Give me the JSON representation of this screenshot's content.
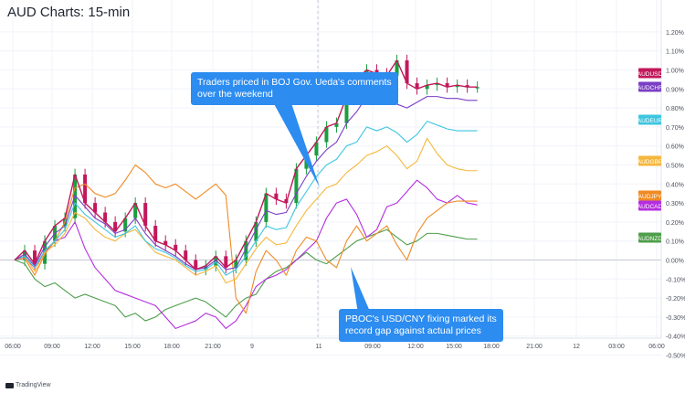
{
  "title": "AUD Charts: 15-min",
  "watermark": "TradingView",
  "annotations": [
    "Traders priced in BOJ Gov. Ueda's comments\nover the weekend",
    "PBOC's USD/CNY fixing marked its\nrecord gap against actual prices"
  ],
  "colors": {
    "background": "#ffffff",
    "grid": "#f0f3fa",
    "zero_line": "#b8bcc8",
    "up_candle": "#1b9e3e",
    "down_candle": "#c2185b",
    "callout": "#2c8cf0",
    "axis_text": "#4a4f5c"
  },
  "chart_data": {
    "type": "line",
    "title": "AUD Charts: 15-min",
    "x_ticks": [
      "06:00",
      "09:00",
      "12:00",
      "15:00",
      "18:00",
      "21:00",
      "9",
      "11",
      "09:00",
      "12:00",
      "15:00",
      "18:00",
      "21:00",
      "12",
      "03:00",
      "06:00"
    ],
    "y_ticks": [
      "1.20%",
      "1.10%",
      "1.00%",
      "0.90%",
      "0.80%",
      "0.70%",
      "0.60%",
      "0.50%",
      "0.40%",
      "0.30%",
      "0.20%",
      "0.10%",
      "0.00%",
      "-0.10%",
      "-0.20%",
      "-0.30%",
      "-0.40%",
      "-0.50%"
    ],
    "ylim": [
      -0.5,
      1.25
    ],
    "grid": true,
    "x_index": [
      0,
      3,
      6,
      9,
      12,
      15,
      18,
      21,
      24,
      27,
      30,
      33,
      36,
      39,
      42,
      45,
      48,
      51,
      54,
      57,
      60,
      63,
      66,
      69,
      72,
      75,
      78,
      81,
      84,
      87,
      90,
      93,
      96,
      99,
      102,
      105,
      108,
      111,
      114,
      117,
      120,
      123,
      126,
      129,
      132,
      135,
      138
    ],
    "series": [
      {
        "name": "AUDUSD",
        "color": "#c2185b",
        "last_label": true,
        "values": [
          0.0,
          0.05,
          -0.02,
          0.1,
          0.18,
          0.22,
          0.45,
          0.3,
          0.25,
          0.2,
          0.15,
          0.22,
          0.3,
          0.18,
          0.1,
          0.08,
          0.05,
          0.0,
          -0.05,
          -0.03,
          0.02,
          -0.04,
          0.0,
          0.1,
          0.2,
          0.35,
          0.32,
          0.3,
          0.48,
          0.55,
          0.62,
          0.7,
          0.72,
          0.86,
          0.95,
          1.0,
          0.98,
          0.97,
          1.05,
          0.93,
          0.9,
          0.92,
          0.93,
          0.91,
          0.92,
          0.91,
          0.91
        ]
      },
      {
        "name": "AUDCHF",
        "color": "#7b3fc4",
        "last_label": true,
        "values": [
          0.0,
          0.03,
          -0.03,
          0.07,
          0.14,
          0.18,
          0.34,
          0.28,
          0.22,
          0.19,
          0.14,
          0.16,
          0.22,
          0.14,
          0.08,
          0.05,
          0.02,
          -0.02,
          -0.05,
          -0.04,
          0.0,
          -0.05,
          -0.04,
          0.06,
          0.16,
          0.26,
          0.24,
          0.25,
          0.35,
          0.44,
          0.52,
          0.58,
          0.62,
          0.72,
          0.78,
          0.86,
          0.84,
          0.85,
          0.82,
          0.8,
          0.83,
          0.86,
          0.86,
          0.85,
          0.85,
          0.84,
          0.84
        ]
      },
      {
        "name": "AUDEUR",
        "color": "#3ec6e0",
        "last_label": true,
        "values": [
          0.0,
          0.02,
          -0.04,
          0.05,
          0.1,
          0.16,
          0.3,
          0.24,
          0.2,
          0.16,
          0.12,
          0.14,
          0.18,
          0.1,
          0.06,
          0.04,
          0.01,
          -0.03,
          -0.06,
          -0.05,
          -0.01,
          -0.08,
          -0.05,
          0.02,
          0.1,
          0.18,
          0.16,
          0.17,
          0.28,
          0.36,
          0.44,
          0.5,
          0.53,
          0.6,
          0.62,
          0.7,
          0.68,
          0.7,
          0.67,
          0.62,
          0.66,
          0.73,
          0.71,
          0.69,
          0.68,
          0.68,
          0.68
        ]
      },
      {
        "name": "AUDGBP",
        "color": "#f5b73b",
        "last_label": true,
        "values": [
          0.0,
          0.02,
          -0.06,
          0.04,
          0.08,
          0.14,
          0.25,
          0.22,
          0.16,
          0.12,
          0.1,
          0.14,
          0.16,
          0.1,
          0.04,
          0.02,
          0.0,
          -0.04,
          -0.08,
          -0.06,
          -0.03,
          -0.12,
          -0.1,
          -0.02,
          0.06,
          0.12,
          0.08,
          0.09,
          0.18,
          0.26,
          0.32,
          0.38,
          0.4,
          0.46,
          0.5,
          0.55,
          0.57,
          0.6,
          0.55,
          0.48,
          0.52,
          0.64,
          0.56,
          0.5,
          0.48,
          0.47,
          0.47
        ]
      },
      {
        "name": "AUDJPY",
        "color": "#f08a24",
        "last_label": true,
        "values": [
          0.0,
          0.01,
          -0.08,
          0.03,
          0.1,
          0.2,
          0.38,
          0.4,
          0.35,
          0.33,
          0.35,
          0.42,
          0.5,
          0.46,
          0.4,
          0.38,
          0.4,
          0.36,
          0.32,
          0.36,
          0.4,
          0.34,
          -0.2,
          -0.28,
          -0.06,
          0.05,
          0.0,
          -0.08,
          0.05,
          0.12,
          0.1,
          0.0,
          -0.04,
          0.1,
          0.18,
          0.1,
          0.14,
          0.18,
          0.08,
          0.0,
          0.14,
          0.22,
          0.26,
          0.3,
          0.31,
          0.31,
          0.31
        ]
      },
      {
        "name": "AUDCAD",
        "color": "#b42ee0",
        "last_label": true,
        "values": [
          0.0,
          0.01,
          -0.04,
          0.04,
          0.1,
          0.12,
          0.2,
          0.06,
          -0.04,
          -0.1,
          -0.16,
          -0.18,
          -0.2,
          -0.22,
          -0.24,
          -0.3,
          -0.36,
          -0.34,
          -0.32,
          -0.28,
          -0.3,
          -0.36,
          -0.32,
          -0.24,
          -0.14,
          -0.1,
          -0.08,
          -0.05,
          0.0,
          0.05,
          0.1,
          0.22,
          0.3,
          0.32,
          0.24,
          0.12,
          0.16,
          0.28,
          0.3,
          0.36,
          0.42,
          0.38,
          0.32,
          0.3,
          0.34,
          0.3,
          0.29
        ]
      },
      {
        "name": "AUDNZD",
        "color": "#4e9e4a",
        "last_label": true,
        "values": [
          0.0,
          -0.02,
          -0.1,
          -0.14,
          -0.12,
          -0.16,
          -0.2,
          -0.18,
          -0.2,
          -0.22,
          -0.24,
          -0.3,
          -0.28,
          -0.32,
          -0.3,
          -0.26,
          -0.24,
          -0.22,
          -0.2,
          -0.22,
          -0.26,
          -0.3,
          -0.24,
          -0.2,
          -0.18,
          -0.1,
          -0.06,
          -0.04,
          0.0,
          0.04,
          0.0,
          -0.02,
          0.02,
          0.06,
          0.1,
          0.12,
          0.14,
          0.16,
          0.12,
          0.08,
          0.1,
          0.14,
          0.14,
          0.13,
          0.12,
          0.11,
          0.11
        ]
      }
    ]
  }
}
